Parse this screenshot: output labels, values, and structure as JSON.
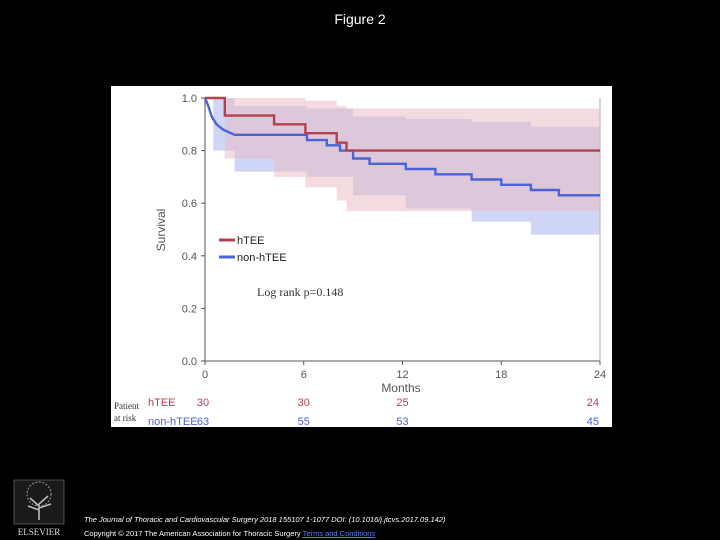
{
  "figure_title": "Figure 2",
  "footer": {
    "citation": "The Journal of Thoracic and Cardiovascular Surgery 2018 155107 1-1077 DOI: (10.1016/j.jtcvs.2017.09.142)",
    "copyright": "Copyright © 2017 The American Association for Thoracic Surgery",
    "terms_link": "Terms and Conditions",
    "publisher_logo_text": "ELSEVIER"
  },
  "colors": {
    "hTEE": "#b5404f",
    "non_hTEE": "#4a63d6",
    "hTEE_band": "#e9b8c0",
    "non_hTEE_band": "#aab6ee"
  },
  "chart_data": {
    "type": "line",
    "subtype": "kaplan-meier",
    "ylabel": "Survival",
    "xlabel": "Months",
    "xlim": [
      0,
      24
    ],
    "ylim": [
      0,
      1.0
    ],
    "xticks": [
      "0",
      "6",
      "12",
      "18",
      "24"
    ],
    "yticks": [
      "0.0",
      "0.2",
      "0.4",
      "0.6",
      "0.8",
      "1.0"
    ],
    "annotation": "Log rank p=0.148",
    "legend": [
      "h​TEE",
      "non-hTEE"
    ],
    "series": [
      {
        "name": "hTEE",
        "step": [
          [
            0,
            1.0
          ],
          [
            1.2,
            1.0
          ],
          [
            1.2,
            0.933
          ],
          [
            4.2,
            0.933
          ],
          [
            4.2,
            0.9
          ],
          [
            6.1,
            0.9
          ],
          [
            6.1,
            0.866
          ],
          [
            8.0,
            0.866
          ],
          [
            8.0,
            0.83
          ],
          [
            8.6,
            0.83
          ],
          [
            8.6,
            0.8
          ],
          [
            24,
            0.8
          ]
        ],
        "ci_upper": [
          [
            0,
            1.0
          ],
          [
            1.2,
            1.0
          ],
          [
            4.2,
            1.0
          ],
          [
            6.1,
            0.99
          ],
          [
            8.0,
            0.97
          ],
          [
            8.6,
            0.96
          ],
          [
            24,
            0.95
          ]
        ],
        "ci_lower": [
          [
            0,
            1.0
          ],
          [
            1.2,
            0.77
          ],
          [
            4.2,
            0.7
          ],
          [
            6.1,
            0.66
          ],
          [
            8.0,
            0.61
          ],
          [
            8.6,
            0.57
          ],
          [
            24,
            0.57
          ]
        ]
      },
      {
        "name": "non-hTEE",
        "step": [
          [
            0,
            1.0
          ],
          [
            0.2,
            0.97
          ],
          [
            0.4,
            0.93
          ],
          [
            0.7,
            0.9
          ],
          [
            1.1,
            0.88
          ],
          [
            1.8,
            0.86
          ],
          [
            6.2,
            0.86
          ],
          [
            6.2,
            0.84
          ],
          [
            7.4,
            0.84
          ],
          [
            7.4,
            0.82
          ],
          [
            8.2,
            0.82
          ],
          [
            8.2,
            0.8
          ],
          [
            9.0,
            0.8
          ],
          [
            9.0,
            0.77
          ],
          [
            10.0,
            0.77
          ],
          [
            10.0,
            0.75
          ],
          [
            12.2,
            0.75
          ],
          [
            12.2,
            0.73
          ],
          [
            14.0,
            0.73
          ],
          [
            14.0,
            0.71
          ],
          [
            16.2,
            0.71
          ],
          [
            16.2,
            0.69
          ],
          [
            18.0,
            0.69
          ],
          [
            18.0,
            0.67
          ],
          [
            19.8,
            0.67
          ],
          [
            19.8,
            0.65
          ],
          [
            21.5,
            0.65
          ],
          [
            21.5,
            0.63
          ],
          [
            24,
            0.63
          ]
        ],
        "ci_upper": [
          [
            0,
            1.0
          ],
          [
            0.5,
            1.0
          ],
          [
            1.8,
            0.97
          ],
          [
            6.2,
            0.96
          ],
          [
            9.0,
            0.93
          ],
          [
            12.2,
            0.92
          ],
          [
            16.2,
            0.91
          ],
          [
            19.8,
            0.89
          ],
          [
            24,
            0.89
          ]
        ],
        "ci_lower": [
          [
            0,
            1.0
          ],
          [
            0.5,
            0.8
          ],
          [
            1.8,
            0.72
          ],
          [
            6.2,
            0.7
          ],
          [
            9.0,
            0.63
          ],
          [
            12.2,
            0.58
          ],
          [
            16.2,
            0.53
          ],
          [
            19.8,
            0.48
          ],
          [
            24,
            0.44
          ]
        ]
      }
    ],
    "risk_table": {
      "label_line1": "Patient",
      "label_line2": "at risk",
      "rows": [
        {
          "group": "hTEE",
          "counts": [
            "30",
            "30",
            "25",
            "24"
          ]
        },
        {
          "group": "non-hTEE",
          "counts": [
            "63",
            "55",
            "53",
            "45"
          ]
        }
      ],
      "count_months": [
        0,
        6,
        12,
        24
      ]
    }
  }
}
